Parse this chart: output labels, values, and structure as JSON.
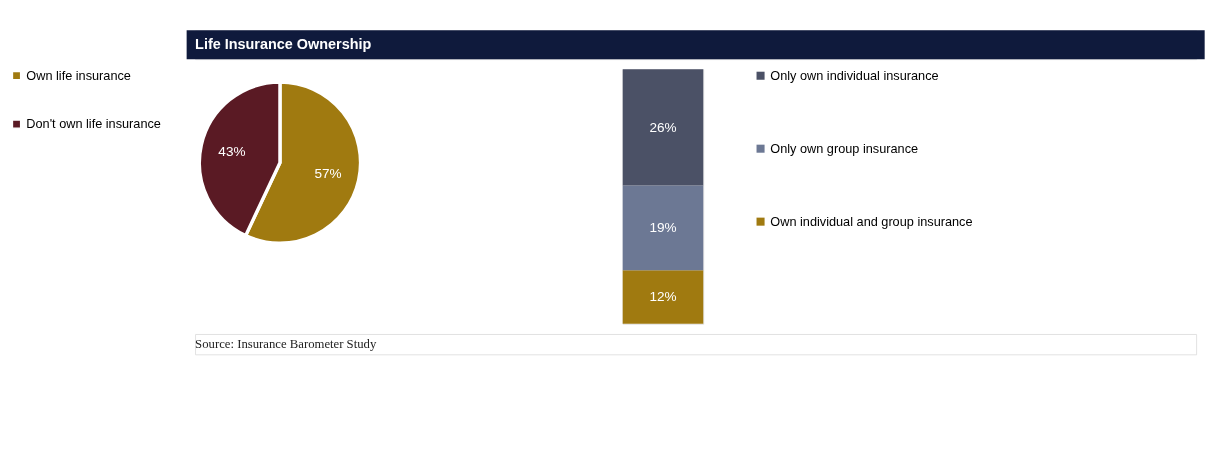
{
  "chart_data": [
    {
      "type": "pie",
      "title": "Life Insurance Ownership",
      "categories": [
        "Own life insurance",
        "Don't own life insurance"
      ],
      "values": [
        57,
        43
      ],
      "colors": [
        "#a07a10",
        "#5a1a24"
      ],
      "value_labels": [
        "57%",
        "43%"
      ],
      "legend": "left",
      "annotations": [
        "Source:  Insurance Barometer Study"
      ]
    },
    {
      "type": "bar",
      "stacked": true,
      "categories": [
        null
      ],
      "legend": "right",
      "series": [
        {
          "name": "Own individual and group insurance",
          "color": "#a07a10",
          "values": [
            12
          ],
          "value_labels": [
            "12%"
          ]
        },
        {
          "name": "Only own group insurance",
          "color": "#6c7894",
          "values": [
            19
          ],
          "value_labels": [
            "19%"
          ]
        },
        {
          "name": "Only own individual insurance",
          "color": "#4b5166",
          "values": [
            26
          ],
          "value_labels": [
            "26%"
          ]
        }
      ]
    }
  ]
}
